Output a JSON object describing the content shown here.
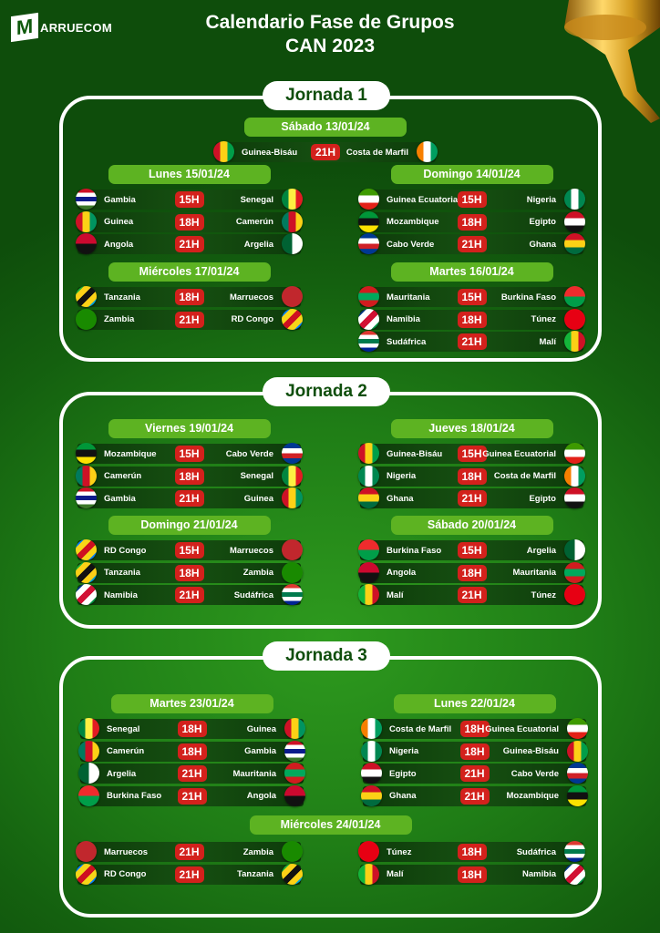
{
  "brand": {
    "logo_letter": "M",
    "logo_text": "ARRUECOM"
  },
  "header": {
    "title_line1": "Calendario Fase de Grupos",
    "title_line2": "CAN 2023"
  },
  "jornadas": [
    {
      "label": "Jornada 1",
      "days": [
        {
          "label": "Sábado 13/01/24",
          "matches": [
            {
              "home": "Guinea-Bisáu",
              "time": "21H",
              "away": "Costa de Marfil"
            }
          ]
        },
        {
          "label": "Lunes 15/01/24",
          "matches": [
            {
              "home": "Gambia",
              "time": "15H",
              "away": "Senegal"
            },
            {
              "home": "Guinea",
              "time": "18H",
              "away": "Camerún"
            },
            {
              "home": "Angola",
              "time": "21H",
              "away": "Argelia"
            }
          ]
        },
        {
          "label": "Miércoles 17/01/24",
          "matches": [
            {
              "home": "Tanzania",
              "time": "18H",
              "away": "Marruecos"
            },
            {
              "home": "Zambia",
              "time": "21H",
              "away": "RD Congo"
            }
          ]
        },
        {
          "label": "Domingo 14/01/24",
          "matches": [
            {
              "home": "Guinea Ecuatorial",
              "time": "15H",
              "away": "Nigeria"
            },
            {
              "home": "Mozambique",
              "time": "18H",
              "away": "Egipto"
            },
            {
              "home": "Cabo Verde",
              "time": "21H",
              "away": "Ghana"
            }
          ]
        },
        {
          "label": "Martes 16/01/24",
          "matches": [
            {
              "home": "Mauritania",
              "time": "15H",
              "away": "Burkina Faso"
            },
            {
              "home": "Namibia",
              "time": "18H",
              "away": "Túnez"
            },
            {
              "home": "Sudáfrica",
              "time": "21H",
              "away": "Malí"
            }
          ]
        }
      ]
    },
    {
      "label": "Jornada 2",
      "days": [
        {
          "label": "Viernes 19/01/24",
          "matches": [
            {
              "home": "Mozambique",
              "time": "15H",
              "away": "Cabo Verde"
            },
            {
              "home": "Camerún",
              "time": "18H",
              "away": "Senegal"
            },
            {
              "home": "Gambia",
              "time": "21H",
              "away": "Guinea"
            }
          ]
        },
        {
          "label": "Domingo 21/01/24",
          "matches": [
            {
              "home": "RD Congo",
              "time": "15H",
              "away": "Marruecos"
            },
            {
              "home": "Tanzania",
              "time": "18H",
              "away": "Zambia"
            },
            {
              "home": "Namibia",
              "time": "21H",
              "away": "Sudáfrica"
            }
          ]
        },
        {
          "label": "Jueves 18/01/24",
          "matches": [
            {
              "home": "Guinea-Bisáu",
              "time": "15H",
              "away": "Guinea Ecuatorial"
            },
            {
              "home": "Nigeria",
              "time": "18H",
              "away": "Costa de Marfil"
            },
            {
              "home": "Ghana",
              "time": "21H",
              "away": "Egipto"
            }
          ]
        },
        {
          "label": "Sábado 20/01/24",
          "matches": [
            {
              "home": "Burkina Faso",
              "time": "15H",
              "away": "Argelia"
            },
            {
              "home": "Angola",
              "time": "18H",
              "away": "Mauritania"
            },
            {
              "home": "Malí",
              "time": "21H",
              "away": "Túnez"
            }
          ]
        }
      ]
    },
    {
      "label": "Jornada 3",
      "days": [
        {
          "label": "Martes 23/01/24",
          "matches": [
            {
              "home": "Senegal",
              "time": "18H",
              "away": "Guinea"
            },
            {
              "home": "Camerún",
              "time": "18H",
              "away": "Gambia"
            },
            {
              "home": "Argelia",
              "time": "21H",
              "away": "Mauritania"
            },
            {
              "home": "Burkina Faso",
              "time": "21H",
              "away": "Angola"
            }
          ]
        },
        {
          "label": "Lunes 22/01/24",
          "matches": [
            {
              "home": "Costa de Marfil",
              "time": "18H",
              "away": "Guinea Ecuatorial"
            },
            {
              "home": "Nigeria",
              "time": "18H",
              "away": "Guinea-Bisáu"
            },
            {
              "home": "Egipto",
              "time": "21H",
              "away": "Cabo Verde"
            },
            {
              "home": "Ghana",
              "time": "21H",
              "away": "Mozambique"
            }
          ]
        },
        {
          "label": "Miércoles 24/01/24",
          "matches": [
            {
              "home": "Marruecos",
              "time": "21H",
              "away": "Zambia"
            },
            {
              "home": "RD Congo",
              "time": "21H",
              "away": "Tanzania"
            },
            {
              "home": "Túnez",
              "time": "18H",
              "away": "Sudáfrica"
            },
            {
              "home": "Malí",
              "time": "18H",
              "away": "Namibia"
            }
          ]
        }
      ]
    }
  ],
  "colors": {
    "day_header": "#5db322",
    "time_badge": "#d3211c",
    "background": "#1f7d16"
  },
  "flag_colors": {
    "Guinea-Bisáu": [
      "90deg",
      "#ce1126",
      "#fcd116",
      "#009e49"
    ],
    "Costa de Marfil": [
      "90deg",
      "#f77f00",
      "#ffffff",
      "#009e60"
    ],
    "Gambia": [
      "180deg",
      "#ce1126",
      "#ffffff",
      "#0c1c8c",
      "#ffffff",
      "#3a7728"
    ],
    "Senegal": [
      "90deg",
      "#00853f",
      "#fdef42",
      "#e31b23"
    ],
    "Guinea": [
      "90deg",
      "#ce1126",
      "#fcd116",
      "#009460"
    ],
    "Camerún": [
      "90deg",
      "#007a5e",
      "#ce1126",
      "#fcd116"
    ],
    "Angola": [
      "180deg",
      "#cc092f",
      "#111111"
    ],
    "Argelia": [
      "90deg",
      "#006233",
      "#ffffff"
    ],
    "Tanzania": [
      "135deg",
      "#1eb53a",
      "#fcd116",
      "#111111",
      "#fcd116",
      "#00a3dd"
    ],
    "Zambia": [
      "90deg",
      "#198a00",
      "#198a00"
    ],
    "Marruecos": [
      "90deg",
      "#c1272d",
      "#c1272d"
    ],
    "RD Congo": [
      "135deg",
      "#007fff",
      "#f7d618",
      "#ce1021",
      "#f7d618",
      "#007fff"
    ],
    "Guinea Ecuatorial": [
      "180deg",
      "#3e9a00",
      "#ffffff",
      "#e32118"
    ],
    "Nigeria": [
      "90deg",
      "#008751",
      "#ffffff",
      "#008751"
    ],
    "Mozambique": [
      "180deg",
      "#009739",
      "#111111",
      "#fce100"
    ],
    "Egipto": [
      "180deg",
      "#ce1126",
      "#ffffff",
      "#111111"
    ],
    "Cabo Verde": [
      "180deg",
      "#003893",
      "#ffffff",
      "#cf2027",
      "#003893"
    ],
    "Ghana": [
      "180deg",
      "#ce1126",
      "#fcd116",
      "#006b3f"
    ],
    "Mauritania": [
      "180deg",
      "#d01c1f",
      "#00a95c",
      "#d01c1f"
    ],
    "Burkina Faso": [
      "180deg",
      "#ef2b2d",
      "#009e49"
    ],
    "Namibia": [
      "135deg",
      "#003580",
      "#ffffff",
      "#d21034",
      "#ffffff",
      "#009543"
    ],
    "Túnez": [
      "90deg",
      "#e70013",
      "#e70013"
    ],
    "Sudáfrica": [
      "180deg",
      "#de3831",
      "#ffffff",
      "#007a4d",
      "#ffffff",
      "#002395"
    ],
    "Malí": [
      "90deg",
      "#14b53a",
      "#fcd116",
      "#ce1126"
    ]
  }
}
